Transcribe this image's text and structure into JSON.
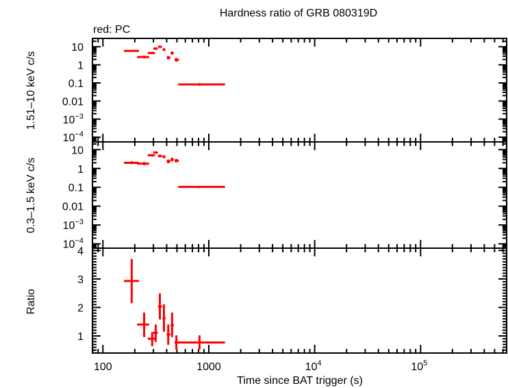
{
  "title": "Hardness ratio of GRB 080319D",
  "subtitle": "red: PC",
  "colors": {
    "series": "#ff0000",
    "axes": "#000000"
  },
  "chart_data": [
    {
      "type": "scatter",
      "panel": "top",
      "ylabel": "1.51–10 keV c/s",
      "xscale": "log",
      "yscale": "log",
      "xlim": [
        79.6,
        650000
      ],
      "ylim": [
        5.5e-05,
        29
      ],
      "yticks": [
        {
          "v": 10,
          "label": "10"
        },
        {
          "v": 1,
          "label": "1"
        },
        {
          "v": 0.1,
          "label": "0.1"
        },
        {
          "v": 0.01,
          "label": "0.01"
        },
        {
          "v": 0.001,
          "label": "10",
          "sup": "−3"
        },
        {
          "v": 0.0001,
          "label": "10",
          "sup": "−4"
        }
      ],
      "series": [
        {
          "x": [
            187,
            245,
            292,
            315,
            345,
            377,
            414,
            450,
            494,
            817
          ],
          "xlo": [
            158,
            210,
            265,
            299,
            331,
            366,
            400,
            435,
            475,
            514
          ],
          "xhi": [
            219,
            273,
            310,
            330,
            362,
            390,
            434,
            467,
            522,
            1422
          ],
          "y": [
            5.9,
            2.7,
            4.5,
            7.9,
            10,
            7.0,
            2.5,
            4.5,
            1.9,
            0.083
          ],
          "ylo": [
            5.4,
            2.3,
            3.9,
            6.8,
            8.9,
            5.9,
            2.0,
            3.7,
            1.5,
            0.07
          ],
          "yhi": [
            6.4,
            3.2,
            5.2,
            9.2,
            11.2,
            8.3,
            3.1,
            5.4,
            2.4,
            0.097
          ]
        }
      ]
    },
    {
      "type": "scatter",
      "panel": "middle",
      "ylabel": "0.3–1.5 keV c/s",
      "xscale": "log",
      "yscale": "log",
      "xlim": [
        79.6,
        650000
      ],
      "ylim": [
        5.9e-05,
        25.7
      ],
      "yticks": [
        {
          "v": 10,
          "label": "10"
        },
        {
          "v": 1,
          "label": "1"
        },
        {
          "v": 0.1,
          "label": "0.1"
        },
        {
          "v": 0.01,
          "label": "0.01"
        },
        {
          "v": 0.001,
          "label": "10",
          "sup": "−3"
        },
        {
          "v": 0.0001,
          "label": "10",
          "sup": "−4"
        }
      ],
      "series": [
        {
          "x": [
            187,
            245,
            292,
            315,
            345,
            377,
            414,
            450,
            494,
            817
          ],
          "xlo": [
            158,
            210,
            265,
            299,
            331,
            366,
            400,
            435,
            475,
            514
          ],
          "xhi": [
            219,
            273,
            310,
            330,
            362,
            390,
            434,
            467,
            522,
            1422
          ],
          "y": [
            2.0,
            1.8,
            5.0,
            7.0,
            4.6,
            4.2,
            2.4,
            3.0,
            2.6,
            0.105
          ],
          "ylo": [
            1.7,
            1.5,
            4.3,
            6.0,
            3.9,
            3.5,
            1.9,
            2.4,
            2.1,
            0.092
          ],
          "yhi": [
            2.4,
            2.2,
            5.8,
            8.2,
            5.4,
            5.0,
            3.0,
            3.7,
            3.2,
            0.12
          ]
        }
      ]
    },
    {
      "type": "scatter",
      "panel": "bottom",
      "ylabel": "Ratio",
      "xlabel": "Time since BAT trigger (s)",
      "xscale": "log",
      "yscale": "linear",
      "xlim": [
        79.6,
        650000
      ],
      "ylim": [
        0.4,
        4.08
      ],
      "yticks": [
        {
          "v": 1,
          "label": "1"
        },
        {
          "v": 2,
          "label": "2"
        },
        {
          "v": 3,
          "label": "3"
        },
        {
          "v": 4,
          "label": "4"
        }
      ],
      "xticks": [
        {
          "v": 100,
          "label": "100"
        },
        {
          "v": 1000,
          "label": "1000"
        },
        {
          "v": 10000,
          "label": "10",
          "sup": "4"
        },
        {
          "v": 100000,
          "label": "10",
          "sup": "5"
        }
      ],
      "series": [
        {
          "x": [
            187,
            245,
            292,
            315,
            345,
            377,
            414,
            450,
            494,
            817
          ],
          "xlo": [
            158,
            210,
            265,
            299,
            331,
            366,
            400,
            435,
            475,
            514
          ],
          "xhi": [
            219,
            273,
            310,
            330,
            362,
            390,
            434,
            467,
            522,
            1422
          ],
          "y": [
            2.93,
            1.4,
            0.9,
            1.11,
            2.03,
            1.62,
            1.05,
            1.38,
            0.77,
            0.77
          ],
          "ylo": [
            2.15,
            0.96,
            0.64,
            0.79,
            1.58,
            1.15,
            0.69,
            0.96,
            0.52,
            0.52
          ],
          "yhi": [
            3.7,
            1.82,
            1.14,
            1.4,
            2.49,
            2.11,
            1.4,
            1.82,
            1.02,
            1.02
          ]
        }
      ]
    }
  ]
}
